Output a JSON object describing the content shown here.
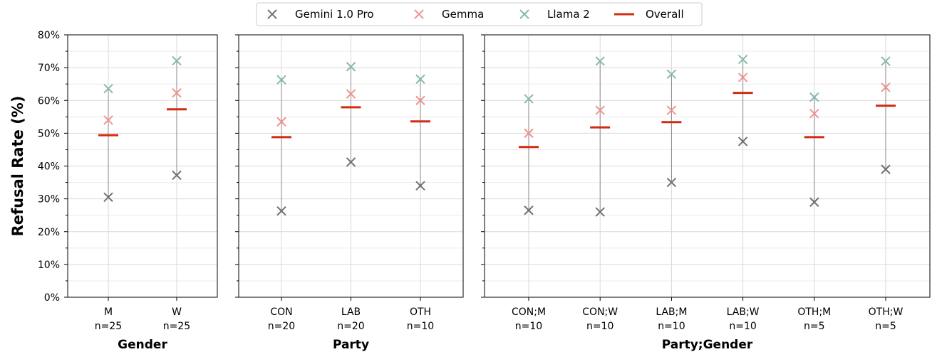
{
  "chart_data": {
    "type": "scatter",
    "ylabel": "Refusal Rate (%)",
    "ylim": [
      0,
      80
    ],
    "yticks": [
      0,
      10,
      20,
      30,
      40,
      50,
      60,
      70,
      80
    ],
    "ytick_format": "{v}%",
    "grid": true,
    "legend": {
      "placement": "top-center",
      "entries": [
        {
          "name": "Gemini 1.0 Pro",
          "marker": "x",
          "color": "#756f6f"
        },
        {
          "name": "Gemma",
          "marker": "x",
          "color": "#f0948f"
        },
        {
          "name": "Llama 2",
          "marker": "x",
          "color": "#88b9ae"
        },
        {
          "name": "Overall",
          "marker": "line",
          "color": "#d12b12"
        }
      ]
    },
    "panels": [
      {
        "xlabel": "Gender",
        "categories": [
          "M",
          "W"
        ],
        "counts": [
          "n=25",
          "n=25"
        ],
        "series": [
          {
            "name": "Gemini 1.0 Pro",
            "values": [
              30.5,
              37.2
            ]
          },
          {
            "name": "Gemma",
            "values": [
              54.0,
              62.3
            ]
          },
          {
            "name": "Llama 2",
            "values": [
              63.6,
              72.1
            ]
          },
          {
            "name": "Overall",
            "values": [
              49.4,
              57.3
            ]
          }
        ]
      },
      {
        "xlabel": "Party",
        "categories": [
          "CON",
          "LAB",
          "OTH"
        ],
        "counts": [
          "n=20",
          "n=20",
          "n=10"
        ],
        "series": [
          {
            "name": "Gemini 1.0 Pro",
            "values": [
              26.3,
              41.2,
              34.0
            ]
          },
          {
            "name": "Gemma",
            "values": [
              53.5,
              62.0,
              60.0
            ]
          },
          {
            "name": "Llama 2",
            "values": [
              66.3,
              70.3,
              66.5
            ]
          },
          {
            "name": "Overall",
            "values": [
              48.8,
              57.9,
              53.6
            ]
          }
        ]
      },
      {
        "xlabel": "Party;Gender",
        "categories": [
          "CON;M",
          "CON;W",
          "LAB;M",
          "LAB;W",
          "OTH;M",
          "OTH;W"
        ],
        "counts": [
          "n=10",
          "n=10",
          "n=10",
          "n=10",
          "n=5",
          "n=5"
        ],
        "series": [
          {
            "name": "Gemini 1.0 Pro",
            "values": [
              26.5,
              26.0,
              35.0,
              47.5,
              29.0,
              39.0
            ]
          },
          {
            "name": "Gemma",
            "values": [
              50.0,
              57.0,
              57.0,
              67.0,
              56.0,
              64.0
            ]
          },
          {
            "name": "Llama 2",
            "values": [
              60.5,
              72.0,
              68.0,
              72.5,
              61.0,
              72.0
            ]
          },
          {
            "name": "Overall",
            "values": [
              45.8,
              51.8,
              53.4,
              62.3,
              48.8,
              58.4
            ]
          }
        ]
      }
    ]
  }
}
